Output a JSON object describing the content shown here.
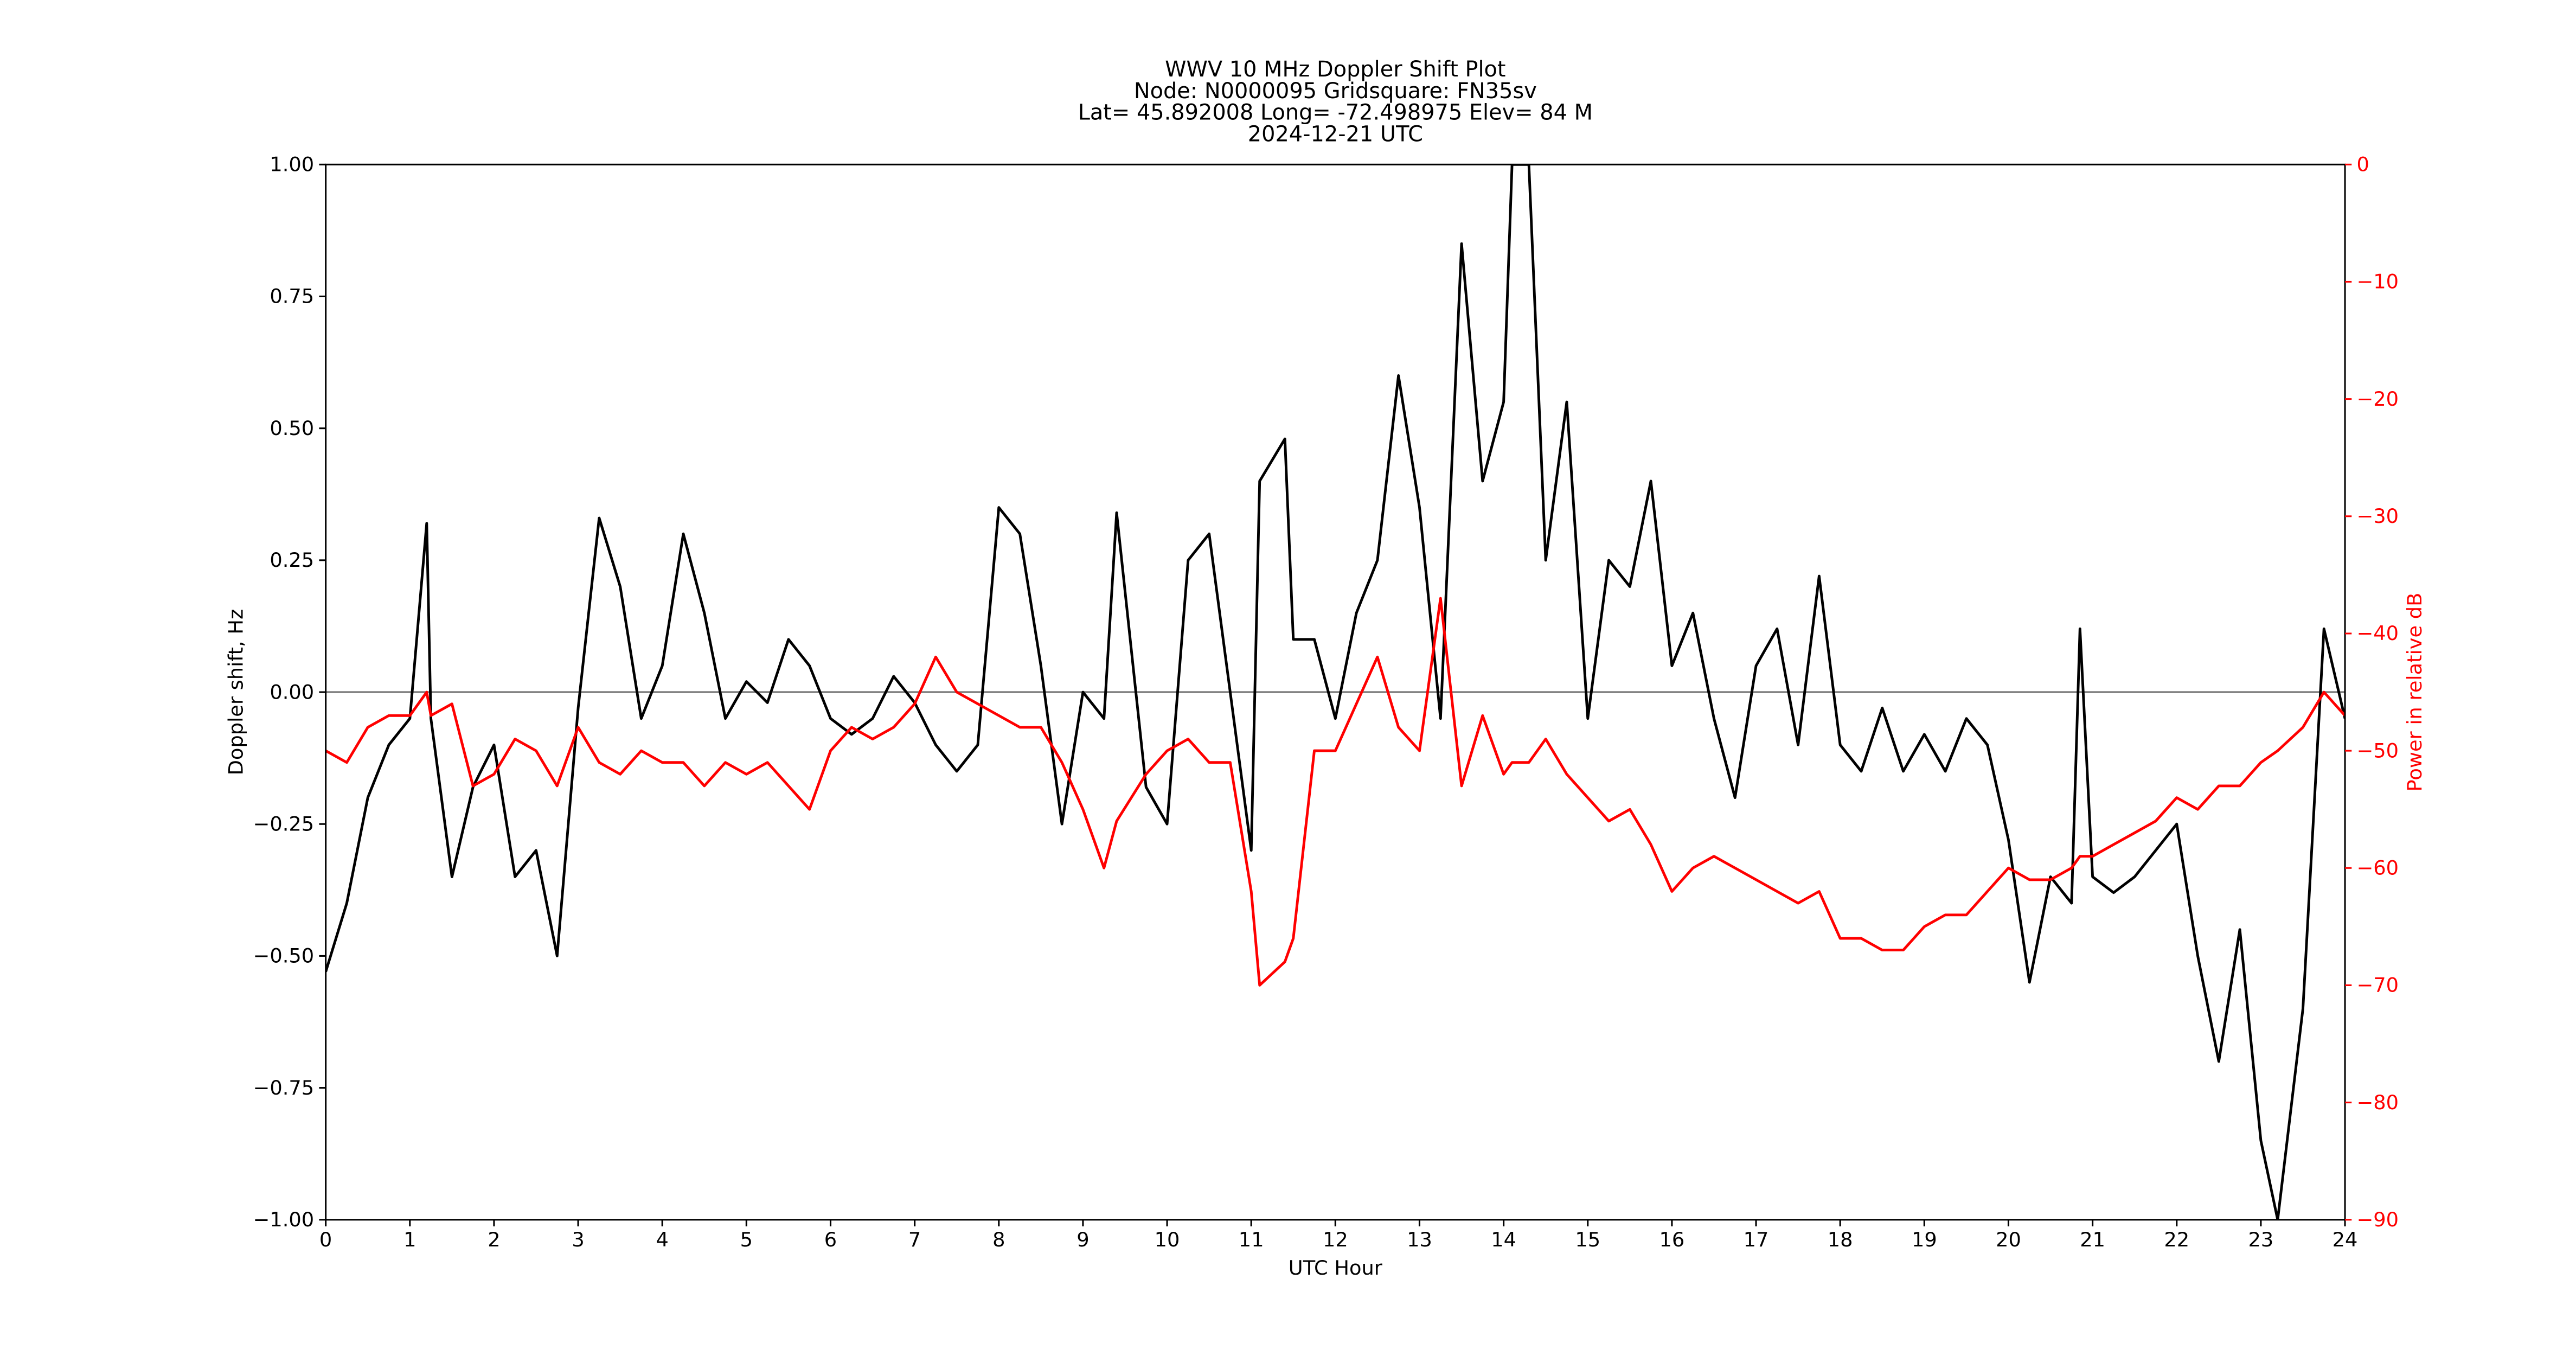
{
  "chart_data": {
    "type": "line",
    "title": [
      "WWV 10 MHz Doppler Shift Plot",
      "Node:  N0000095     Gridsquare:  FN35sv",
      "Lat= 45.892008    Long= -72.498975    Elev= 84 M",
      "2024-12-21  UTC"
    ],
    "x_label": "UTC Hour",
    "y_label": "Doppler shift, Hz",
    "y2_label": "Power in relative dB",
    "x": [
      0,
      0.25,
      0.5,
      0.75,
      1,
      1.2,
      1.25,
      1.5,
      1.75,
      2,
      2.25,
      2.5,
      2.75,
      3,
      3.25,
      3.5,
      3.75,
      4,
      4.25,
      4.5,
      4.75,
      5,
      5.25,
      5.5,
      5.75,
      6,
      6.25,
      6.5,
      6.75,
      7,
      7.25,
      7.5,
      7.75,
      8,
      8.25,
      8.5,
      8.75,
      9,
      9.25,
      9.4,
      9.75,
      10,
      10.25,
      10.5,
      10.75,
      11,
      11.1,
      11.4,
      11.5,
      11.75,
      12,
      12.25,
      12.5,
      12.75,
      13,
      13.25,
      13.5,
      13.75,
      14,
      14.1,
      14.3,
      14.5,
      14.75,
      15,
      15.25,
      15.5,
      15.75,
      16,
      16.25,
      16.5,
      16.75,
      17,
      17.25,
      17.5,
      17.75,
      18,
      18.25,
      18.5,
      18.75,
      19,
      19.25,
      19.5,
      19.75,
      20,
      20.25,
      20.5,
      20.75,
      20.85,
      21,
      21.25,
      21.5,
      21.75,
      22,
      22.25,
      22.5,
      22.75,
      23,
      23.2,
      23.5,
      23.75,
      24
    ],
    "series": [
      {
        "name": "Doppler shift",
        "color": "#000000",
        "axis": "y",
        "values": [
          -0.53,
          -0.4,
          -0.2,
          -0.1,
          -0.05,
          0.32,
          -0.05,
          -0.35,
          -0.18,
          -0.1,
          -0.35,
          -0.3,
          -0.5,
          -0.03,
          0.33,
          0.2,
          -0.05,
          0.05,
          0.3,
          0.15,
          -0.05,
          0.02,
          -0.02,
          0.1,
          0.05,
          -0.05,
          -0.08,
          -0.05,
          0.03,
          -0.02,
          -0.1,
          -0.15,
          -0.1,
          0.35,
          0.3,
          0.05,
          -0.25,
          0,
          -0.05,
          0.34,
          -0.18,
          -0.25,
          0.25,
          0.3,
          0,
          -0.3,
          0.4,
          0.48,
          0.1,
          0.1,
          -0.05,
          0.15,
          0.25,
          0.6,
          0.35,
          -0.05,
          0.85,
          0.4,
          0.55,
          1,
          1,
          0.25,
          0.55,
          -0.05,
          0.25,
          0.2,
          0.4,
          0.05,
          0.15,
          -0.05,
          -0.2,
          0.05,
          0.12,
          -0.1,
          0.22,
          -0.1,
          -0.15,
          -0.03,
          -0.15,
          -0.08,
          -0.15,
          -0.05,
          -0.1,
          -0.28,
          -0.55,
          -0.35,
          -0.4,
          0.12,
          -0.35,
          -0.38,
          -0.35,
          -0.3,
          -0.25,
          -0.5,
          -0.7,
          -0.45,
          -0.85,
          -1,
          -0.6,
          0.12,
          -0.05
        ]
      },
      {
        "name": "Power",
        "color": "#ff0000",
        "axis": "y2",
        "values": [
          -50,
          -51,
          -48,
          -47,
          -47,
          -45,
          -47,
          -46,
          -53,
          -52,
          -49,
          -50,
          -53,
          -48,
          -51,
          -52,
          -50,
          -51,
          -51,
          -53,
          -51,
          -52,
          -51,
          -53,
          -55,
          -50,
          -48,
          -49,
          -48,
          -46,
          -42,
          -45,
          -46,
          -47,
          -48,
          -48,
          -51,
          -55,
          -60,
          -56,
          -52,
          -50,
          -49,
          -51,
          -51,
          -62,
          -70,
          -68,
          -66,
          -50,
          -50,
          -46,
          -42,
          -48,
          -50,
          -37,
          -53,
          -47,
          -52,
          -51,
          -51,
          -49,
          -52,
          -54,
          -56,
          -55,
          -58,
          -62,
          -60,
          -59,
          -60,
          -61,
          -62,
          -63,
          -62,
          -66,
          -66,
          -67,
          -67,
          -65,
          -64,
          -64,
          -62,
          -60,
          -61,
          -61,
          -60,
          -59,
          -59,
          -58,
          -57,
          -56,
          -54,
          -55,
          -53,
          -53,
          -51,
          -50,
          -48,
          -45,
          -47
        ]
      }
    ],
    "reference_line": 0,
    "xlim": [
      0,
      24
    ],
    "xticks": [
      0,
      1,
      2,
      3,
      4,
      5,
      6,
      7,
      8,
      9,
      10,
      11,
      12,
      13,
      14,
      15,
      16,
      17,
      18,
      19,
      20,
      21,
      22,
      23,
      24
    ],
    "ylim": [
      -1,
      1
    ],
    "yticks": [
      {
        "value": 1,
        "label": "1.00"
      },
      {
        "value": 0.75,
        "label": "0.75"
      },
      {
        "value": 0.5,
        "label": "0.50"
      },
      {
        "value": 0.25,
        "label": "0.25"
      },
      {
        "value": 0,
        "label": "0.00"
      },
      {
        "value": -0.25,
        "label": "−0.25"
      },
      {
        "value": -0.5,
        "label": "−0.50"
      },
      {
        "value": -0.75,
        "label": "−0.75"
      },
      {
        "value": -1,
        "label": "−1.00"
      }
    ],
    "y2lim": [
      -90,
      0
    ],
    "y2ticks": [
      0,
      {
        "value": -10,
        "label": "−10"
      },
      {
        "value": -20,
        "label": "−20"
      },
      {
        "value": -30,
        "label": "−30"
      },
      {
        "value": -40,
        "label": "−40"
      },
      {
        "value": -50,
        "label": "−50"
      },
      {
        "value": -60,
        "label": "−60"
      },
      {
        "value": -70,
        "label": "−70"
      },
      {
        "value": -80,
        "label": "−80"
      },
      {
        "value": -90,
        "label": "−90"
      }
    ],
    "y2_color": "#ff0000",
    "reference_color": "#808080"
  }
}
